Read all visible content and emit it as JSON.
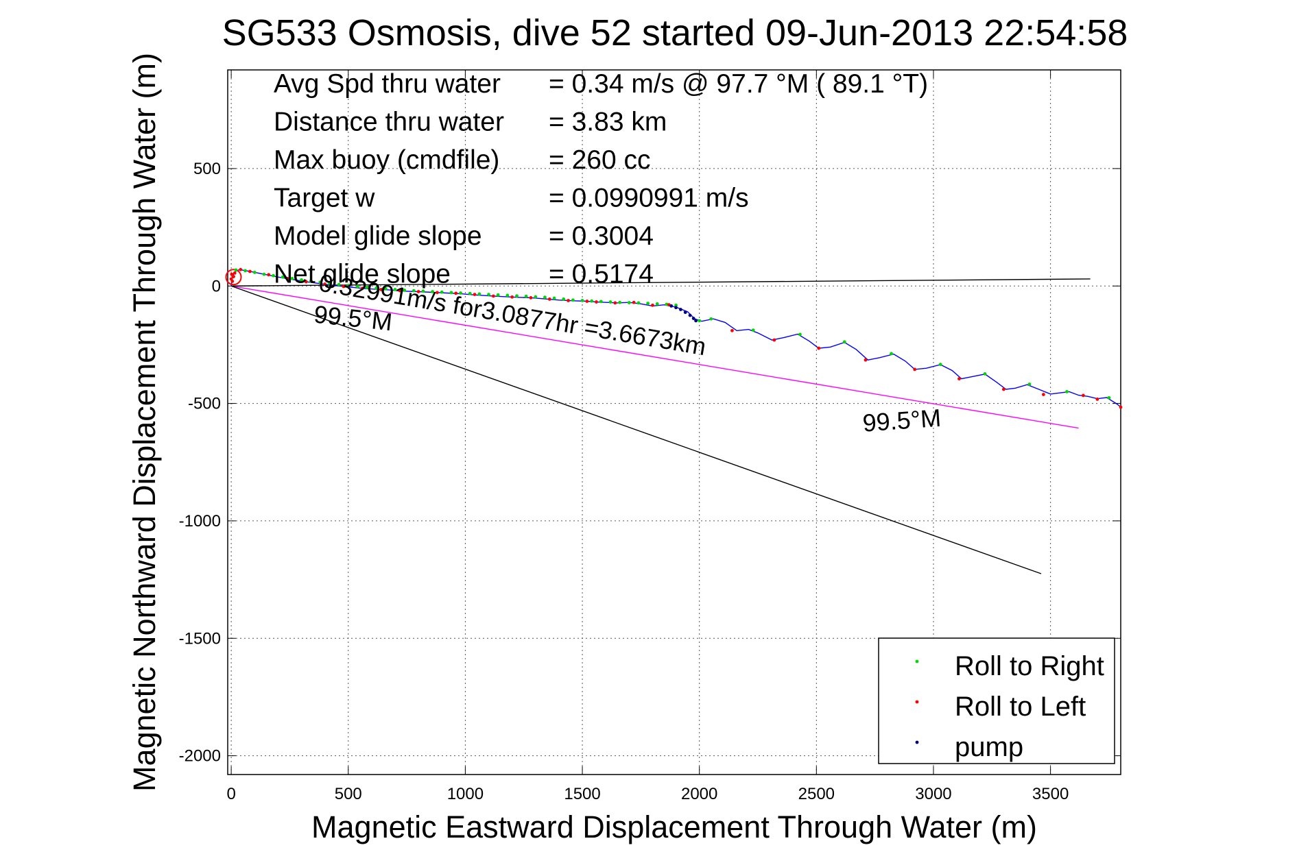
{
  "chart_data": {
    "type": "scatter",
    "title": "SG533 Osmosis, dive 52 started 09-Jun-2013 22:54:58",
    "xlabel": "Magnetic Eastward Displacement Through Water (m)",
    "ylabel": "Magnetic Northward Displacement Through Water (m)",
    "xlim": [
      -15,
      3800
    ],
    "ylim": [
      -2080,
      920
    ],
    "x_ticks": [
      0,
      500,
      1000,
      1500,
      2000,
      2500,
      3000,
      3500
    ],
    "y_ticks": [
      500,
      0,
      -500,
      -1000,
      -1500,
      -2000
    ],
    "grid": true,
    "legend_position": "bottom-right",
    "info_lines": [
      {
        "label": "Avg Spd thru water",
        "value": "=  0.34 m/s @  97.7 °M ( 89.1 °T)"
      },
      {
        "label": "Distance thru water",
        "value": "=  3.83 km"
      },
      {
        "label": "Max buoy (cmdfile)",
        "value": "= 260 cc"
      },
      {
        "label": "Target w",
        "value": "= 0.0990991 m/s"
      },
      {
        "label": "Model glide slope",
        "value": "= 0.3004"
      },
      {
        "label": "Net glide slope",
        "value": "= 0.5174"
      }
    ],
    "annotations": [
      {
        "text": "0.32991m/s for3.0877hr =3.6673km",
        "x": 370,
        "y": -20,
        "rotation_deg": -9.5
      },
      {
        "text": "99.5°M",
        "x": 350,
        "y": -155,
        "rotation_deg": -6
      },
      {
        "text": "99.5°M",
        "x": 2700,
        "y": -620,
        "rotation_deg": 4
      }
    ],
    "reference_lines": [
      {
        "name": "current",
        "color": "#ff00ff",
        "points": [
          [
            0,
            0
          ],
          [
            3620,
            -605
          ]
        ]
      },
      {
        "name": "heading",
        "color": "#000000",
        "points": [
          [
            0,
            0
          ],
          [
            3460,
            -1225
          ]
        ]
      },
      {
        "name": "net",
        "color": "#000000",
        "points": [
          [
            0,
            0
          ],
          [
            3670,
            30
          ]
        ]
      }
    ],
    "track": {
      "color": "#0000ff",
      "points": [
        [
          0,
          0
        ],
        [
          5,
          40
        ],
        [
          15,
          60
        ],
        [
          35,
          70
        ],
        [
          80,
          62
        ],
        [
          140,
          50
        ],
        [
          200,
          38
        ],
        [
          260,
          28
        ],
        [
          320,
          18
        ],
        [
          380,
          10
        ],
        [
          440,
          2
        ],
        [
          500,
          -4
        ],
        [
          560,
          -10
        ],
        [
          620,
          -14
        ],
        [
          680,
          -17
        ],
        [
          740,
          -22
        ],
        [
          800,
          -24
        ],
        [
          860,
          -27
        ],
        [
          920,
          -30
        ],
        [
          980,
          -33
        ],
        [
          1040,
          -38
        ],
        [
          1100,
          -42
        ],
        [
          1160,
          -45
        ],
        [
          1220,
          -48
        ],
        [
          1280,
          -50
        ],
        [
          1340,
          -55
        ],
        [
          1400,
          -60
        ],
        [
          1460,
          -63
        ],
        [
          1520,
          -65
        ],
        [
          1560,
          -68
        ],
        [
          1600,
          -70
        ],
        [
          1650,
          -72
        ],
        [
          1700,
          -70
        ],
        [
          1750,
          -76
        ],
        [
          1800,
          -85
        ],
        [
          1850,
          -80
        ],
        [
          1900,
          -90
        ],
        [
          1950,
          -110
        ],
        [
          1980,
          -140
        ],
        [
          2010,
          -150
        ],
        [
          2060,
          -140
        ],
        [
          2110,
          -155
        ],
        [
          2160,
          -190
        ],
        [
          2210,
          -185
        ],
        [
          2250,
          -200
        ],
        [
          2310,
          -230
        ],
        [
          2360,
          -220
        ],
        [
          2420,
          -205
        ],
        [
          2470,
          -235
        ],
        [
          2510,
          -265
        ],
        [
          2560,
          -260
        ],
        [
          2620,
          -240
        ],
        [
          2670,
          -270
        ],
        [
          2720,
          -315
        ],
        [
          2770,
          -305
        ],
        [
          2830,
          -290
        ],
        [
          2880,
          -320
        ],
        [
          2920,
          -355
        ],
        [
          2970,
          -350
        ],
        [
          3030,
          -335
        ],
        [
          3080,
          -360
        ],
        [
          3120,
          -395
        ],
        [
          3170,
          -385
        ],
        [
          3220,
          -375
        ],
        [
          3270,
          -410
        ],
        [
          3310,
          -440
        ],
        [
          3350,
          -435
        ],
        [
          3400,
          -420
        ],
        [
          3450,
          -440
        ],
        [
          3500,
          -460
        ],
        [
          3540,
          -455
        ],
        [
          3580,
          -450
        ],
        [
          3620,
          -465
        ],
        [
          3660,
          -470
        ],
        [
          3700,
          -480
        ],
        [
          3740,
          -475
        ],
        [
          3780,
          -500
        ],
        [
          3800,
          -515
        ]
      ]
    },
    "series": [
      {
        "name": "Roll to Right",
        "color": "#00d800",
        "x": [
          20,
          60,
          100,
          140,
          180,
          220,
          260,
          300,
          340,
          380,
          420,
          460,
          500,
          540,
          580,
          620,
          660,
          700,
          740,
          780,
          820,
          860,
          900,
          940,
          980,
          1020,
          1060,
          1100,
          1140,
          1180,
          1220,
          1260,
          1300,
          1340,
          1380,
          1420,
          1460,
          1500,
          1540,
          1580,
          1620,
          1660,
          1700,
          1740,
          1780,
          1820,
          1860,
          1900,
          2000,
          2050,
          2230,
          2430,
          2620,
          2820,
          3030,
          3220,
          3410,
          3570,
          3750
        ],
        "y": [
          68,
          65,
          58,
          50,
          44,
          38,
          32,
          26,
          21,
          16,
          11,
          6,
          2,
          -2,
          -6,
          -9,
          -12,
          -15,
          -18,
          -20,
          -22,
          -24,
          -26,
          -28,
          -30,
          -32,
          -34,
          -36,
          -38,
          -40,
          -42,
          -44,
          -46,
          -48,
          -52,
          -56,
          -60,
          -62,
          -64,
          -66,
          -68,
          -70,
          -71,
          -72,
          -74,
          -76,
          -78,
          -82,
          -148,
          -140,
          -188,
          -206,
          -238,
          -288,
          -334,
          -374,
          -418,
          -450,
          -476
        ]
      },
      {
        "name": "Roll to Left",
        "color": "#ff0000",
        "x": [
          0,
          2,
          5,
          10,
          15,
          40,
          80,
          160,
          240,
          320,
          400,
          480,
          560,
          640,
          720,
          800,
          880,
          960,
          1040,
          1120,
          1200,
          1280,
          1360,
          1440,
          1520,
          1560,
          1640,
          1720,
          1800,
          1870,
          2140,
          2320,
          2510,
          2710,
          2920,
          3110,
          3300,
          3470,
          3640,
          3700,
          3800
        ],
        "y": [
          30,
          50,
          20,
          40,
          55,
          70,
          62,
          48,
          32,
          18,
          8,
          -2,
          -10,
          -15,
          -20,
          -24,
          -28,
          -31,
          -36,
          -43,
          -47,
          -50,
          -56,
          -62,
          -65,
          -68,
          -72,
          -70,
          -82,
          -80,
          -190,
          -230,
          -265,
          -315,
          -355,
          -395,
          -440,
          -462,
          -466,
          -482,
          -516
        ]
      },
      {
        "name": "pump",
        "color": "#000080",
        "x": [
          1880,
          1900,
          1920,
          1940,
          1960,
          1975,
          1985
        ],
        "y": [
          -85,
          -92,
          -100,
          -112,
          -125,
          -138,
          -148
        ]
      }
    ]
  }
}
